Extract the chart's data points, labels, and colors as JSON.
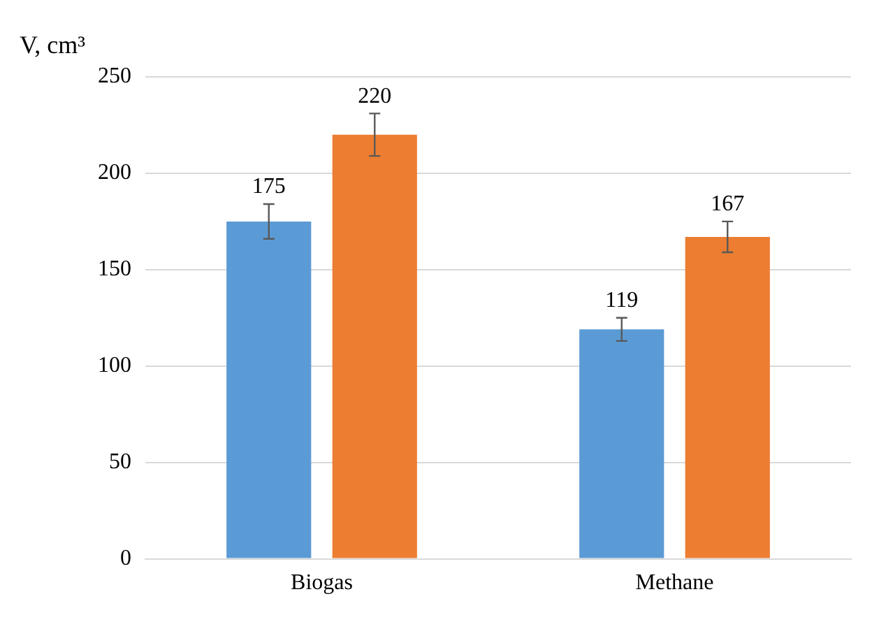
{
  "chart_data": {
    "type": "bar",
    "ylabel": "V, cm³",
    "categories": [
      "Biogas",
      "Methane"
    ],
    "series": [
      {
        "color": "#5b9bd5",
        "values": [
          175,
          119
        ],
        "errors": [
          9,
          6
        ]
      },
      {
        "color": "#ed7d31",
        "values": [
          220,
          167
        ],
        "errors": [
          11,
          8
        ]
      }
    ],
    "ylim": [
      0,
      250
    ],
    "yticks": [
      0,
      50,
      100,
      150,
      200,
      250
    ],
    "grid": "y",
    "data_labels": true,
    "legend": false
  }
}
